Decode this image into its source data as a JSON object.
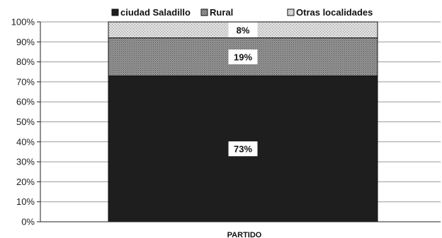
{
  "chart_data": {
    "type": "bar",
    "stacked": true,
    "categories": [
      "PARTIDO"
    ],
    "series": [
      {
        "name": "ciudad Saladillo",
        "values": [
          73
        ],
        "label": "73%",
        "color": "#1e1e1e",
        "pattern": "solid"
      },
      {
        "name": "Rural",
        "values": [
          19
        ],
        "label": "19%",
        "color": "#8c8c8c",
        "pattern": "crosshatch"
      },
      {
        "name": "Otras localidades",
        "values": [
          8
        ],
        "label": "8%",
        "color": "#d8d8d8",
        "pattern": "light-dots"
      }
    ],
    "ylim": [
      0,
      100
    ],
    "yticks": [
      0,
      10,
      20,
      30,
      40,
      50,
      60,
      70,
      80,
      90,
      100
    ],
    "ytick_labels": [
      "0%",
      "10%",
      "20%",
      "30%",
      "40%",
      "50%",
      "60%",
      "70%",
      "80%",
      "90%",
      "100%"
    ],
    "xlabel": "PARTIDO",
    "ylabel": "",
    "title": "",
    "grid": true,
    "legend": "top"
  }
}
